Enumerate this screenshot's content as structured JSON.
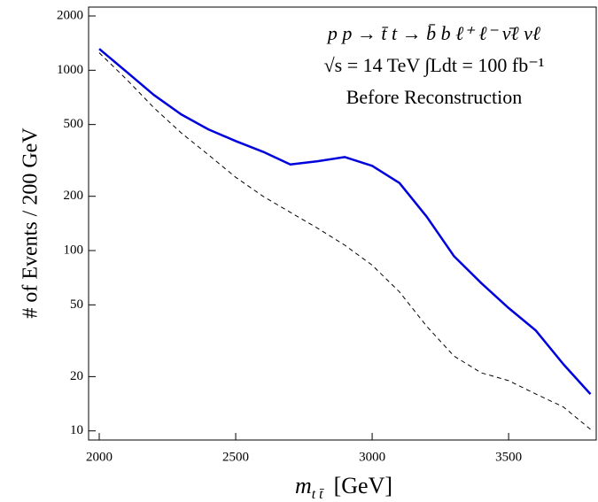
{
  "chart_data": {
    "type": "line",
    "annotations": [
      "p p → t̄ t → b̄ b ℓ⁺ ℓ⁻ ν̄ℓ νℓ",
      "√s = 14 TeV   ∫Ldt = 100 fb⁻¹",
      "Before Reconstruction"
    ],
    "y_label": "# of Events / 200 GeV",
    "x_label": {
      "symbol": "m",
      "subscript": "t t̄",
      "unit": "[GeV]"
    },
    "x": [
      2000,
      2100,
      2200,
      2300,
      2400,
      2500,
      2600,
      2700,
      2800,
      2900,
      3000,
      3100,
      3200,
      3300,
      3400,
      3500,
      3600,
      3700,
      3800
    ],
    "series": [
      {
        "color": "#0000dd",
        "line_style": "solid",
        "values": [
          1313,
          980,
          730,
          570,
          470,
          405,
          353,
          300,
          313,
          330,
          295,
          237,
          154,
          93,
          66,
          48,
          36,
          23.5,
          16
        ]
      },
      {
        "color": "#000000",
        "line_style": "dashed",
        "values": [
          1250,
          890,
          620,
          450,
          340,
          255,
          200,
          163,
          133,
          107,
          83,
          59,
          38,
          26,
          21,
          19,
          16,
          13.6,
          10.2
        ]
      }
    ],
    "xlim": [
      1961,
      3821
    ],
    "xticks": [
      2000,
      2500,
      3000,
      3500
    ],
    "ylim": [
      8.9,
      2240
    ],
    "yticks": [
      10,
      20,
      50,
      100,
      200,
      500,
      1000,
      2000
    ],
    "log_y": true
  }
}
